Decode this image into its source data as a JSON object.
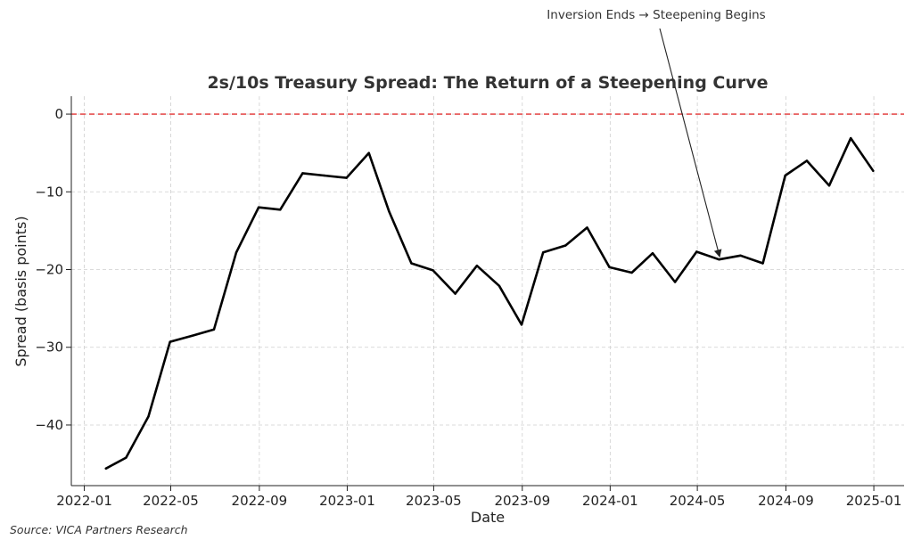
{
  "chart_data": {
    "type": "line",
    "title": "2s/10s Treasury Spread: The Return of a Steepening Curve",
    "xlabel": "Date",
    "ylabel": "Spread (basis points)",
    "x_ticks": [
      "2022-01",
      "2022-05",
      "2022-09",
      "2023-01",
      "2023-05",
      "2023-09",
      "2024-01",
      "2024-05",
      "2024-09",
      "2025-01"
    ],
    "y_ticks": [
      0,
      -10,
      -20,
      -30,
      -40
    ],
    "xlim": [
      "2021-12-14",
      "2025-02-12"
    ],
    "ylim": [
      -47.8,
      2.3
    ],
    "grid": true,
    "line_color": "#000000",
    "reference_line": {
      "y": 0,
      "color": "#e03131",
      "style": "dashed"
    },
    "series": [
      {
        "x": [
          "2022-01-31",
          "2022-02-28",
          "2022-03-31",
          "2022-04-30",
          "2022-05-31",
          "2022-06-30",
          "2022-07-31",
          "2022-08-31",
          "2022-09-30",
          "2022-10-31",
          "2022-11-30",
          "2022-12-31",
          "2023-01-31",
          "2023-02-28",
          "2023-03-31",
          "2023-04-30",
          "2023-05-31",
          "2023-06-30",
          "2023-07-31",
          "2023-08-31",
          "2023-09-30",
          "2023-10-31",
          "2023-11-30",
          "2023-12-31",
          "2024-01-31",
          "2024-02-29",
          "2024-03-31",
          "2024-04-30",
          "2024-05-31",
          "2024-06-30",
          "2024-07-31",
          "2024-08-31",
          "2024-09-30",
          "2024-10-31",
          "2024-11-30",
          "2024-12-31"
        ],
        "y": [
          -45.6,
          -44.2,
          -38.9,
          -29.3,
          -28.5,
          -27.7,
          -17.8,
          -12.0,
          -12.3,
          -7.6,
          -7.9,
          -8.2,
          -5.0,
          -12.5,
          -19.2,
          -20.1,
          -23.1,
          -19.5,
          -22.1,
          -27.1,
          -17.8,
          -16.9,
          -14.6,
          -19.7,
          -20.4,
          -17.9,
          -21.6,
          -17.7,
          -18.7,
          -18.2,
          -19.2,
          -7.9,
          -6.0,
          -9.2,
          -3.1,
          -7.3
        ]
      }
    ],
    "annotation": {
      "text": "Inversion Ends → Steepening Begins",
      "x": "2024-06-01",
      "y": -18.7
    },
    "source_note": "Source: VICA Partners Research"
  }
}
